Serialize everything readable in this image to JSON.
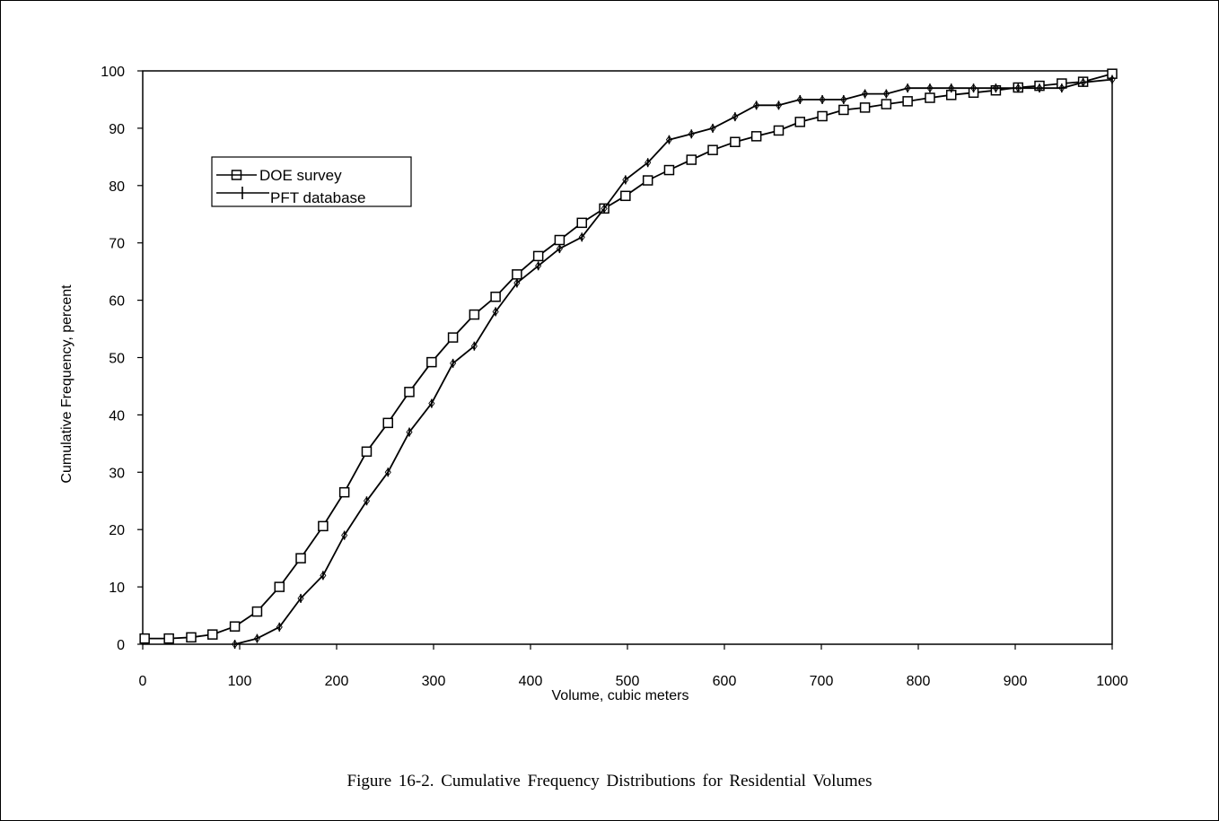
{
  "caption": "Figure 16-2. Cumulative Frequency Distributions for Residential Volumes",
  "chart_data": {
    "type": "line",
    "title": "",
    "xlabel": "Volume, cubic meters",
    "ylabel": "Cumulative Frequency, percent",
    "xlim": [
      0,
      1000
    ],
    "ylim": [
      0,
      100
    ],
    "xticks": [
      0,
      100,
      200,
      300,
      400,
      500,
      600,
      700,
      800,
      900,
      1000
    ],
    "yticks": [
      0,
      10,
      20,
      30,
      40,
      50,
      60,
      70,
      80,
      90,
      100
    ],
    "grid": false,
    "legend_position": "upper-left",
    "series": [
      {
        "name": "DOE survey",
        "marker": "square",
        "color": "#000000",
        "x": [
          2,
          27,
          50,
          72,
          95,
          118,
          141,
          163,
          186,
          208,
          231,
          253,
          275,
          298,
          320,
          342,
          364,
          386,
          408,
          430,
          453,
          476,
          498,
          521,
          543,
          566,
          588,
          611,
          633,
          656,
          678,
          701,
          723,
          745,
          767,
          789,
          812,
          834,
          857,
          880,
          903,
          925,
          948,
          970,
          1000
        ],
        "y": [
          1,
          1,
          1.2,
          1.7,
          3.1,
          5.7,
          10,
          15,
          20.6,
          26.5,
          33.6,
          38.6,
          44,
          49.2,
          53.5,
          57.5,
          60.6,
          64.5,
          67.7,
          70.5,
          73.5,
          76,
          78.2,
          80.9,
          82.7,
          84.5,
          86.2,
          87.6,
          88.6,
          89.6,
          91.1,
          92.1,
          93.2,
          93.6,
          94.2,
          94.7,
          95.3,
          95.8,
          96.2,
          96.6,
          97.1,
          97.4,
          97.8,
          98.1,
          99.5
        ]
      },
      {
        "name": "PFT database",
        "marker": "tick",
        "color": "#000000",
        "x": [
          95,
          118,
          141,
          163,
          186,
          208,
          231,
          253,
          275,
          298,
          320,
          342,
          364,
          386,
          408,
          430,
          453,
          476,
          498,
          521,
          543,
          566,
          588,
          611,
          633,
          656,
          678,
          701,
          723,
          745,
          767,
          789,
          812,
          834,
          857,
          880,
          903,
          925,
          948,
          970,
          1000
        ],
        "y": [
          0,
          1,
          3,
          8,
          12,
          19,
          25,
          30,
          37,
          42,
          49,
          52,
          58,
          63,
          66,
          69,
          71,
          76,
          81,
          84,
          88,
          89,
          90,
          92,
          94,
          94,
          95,
          95,
          95,
          96,
          96,
          97,
          97,
          97,
          97,
          97,
          97,
          97,
          97,
          98,
          98.5
        ]
      }
    ]
  }
}
